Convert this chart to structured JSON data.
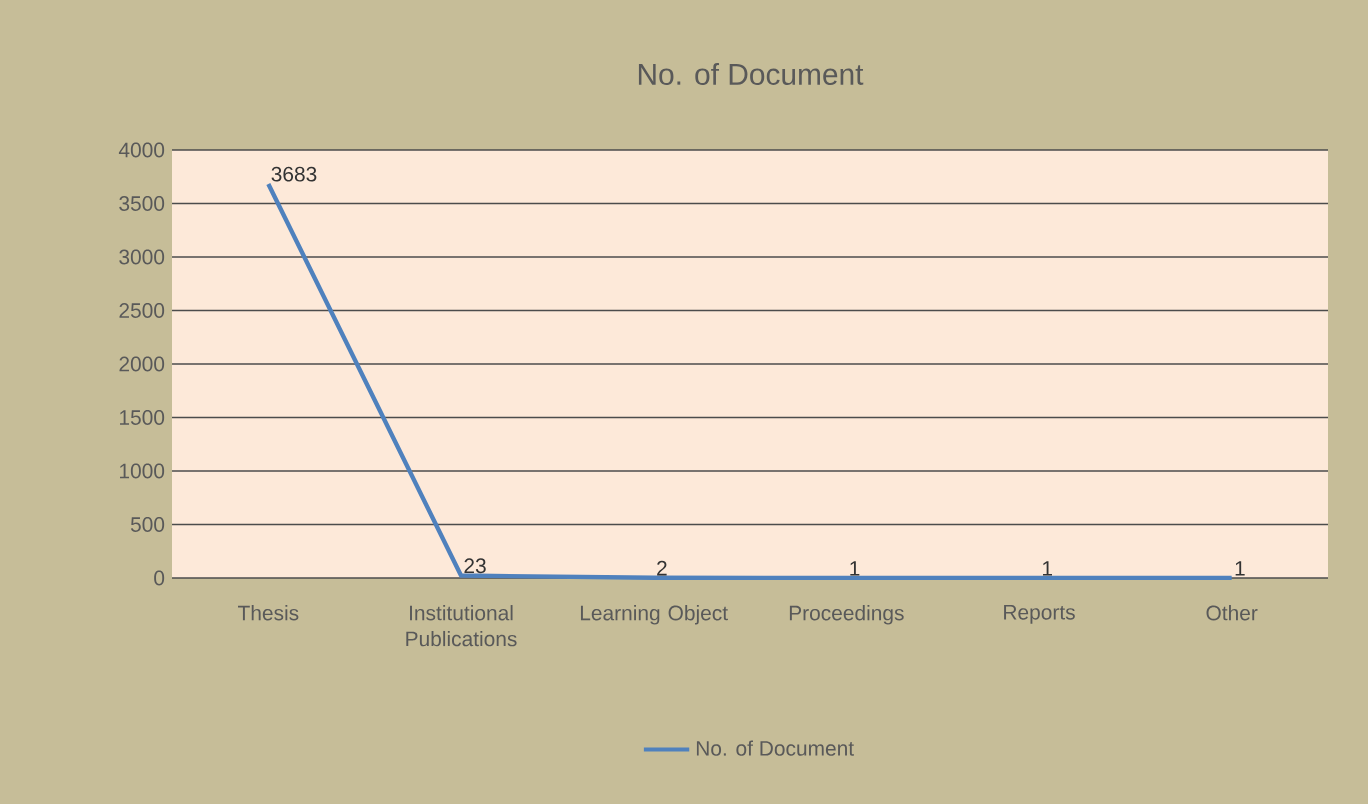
{
  "chart_data": {
    "type": "line",
    "title": "No. of Document",
    "categories": [
      "Thesis",
      "Institutional Publications",
      "Learning Object",
      "Proceedings",
      "Reports",
      "Other"
    ],
    "series": [
      {
        "name": "No. of Document",
        "color": "#4f81bd",
        "values": [
          3683,
          23,
          2,
          1,
          1,
          1
        ]
      }
    ],
    "ylim": [
      0,
      4000
    ],
    "yticks": [
      0,
      500,
      1000,
      1500,
      2000,
      2500,
      3000,
      3500,
      4000
    ],
    "grid": "y",
    "legend": "bottom",
    "data_labels": true,
    "marker": "none",
    "line_style": "solid"
  }
}
